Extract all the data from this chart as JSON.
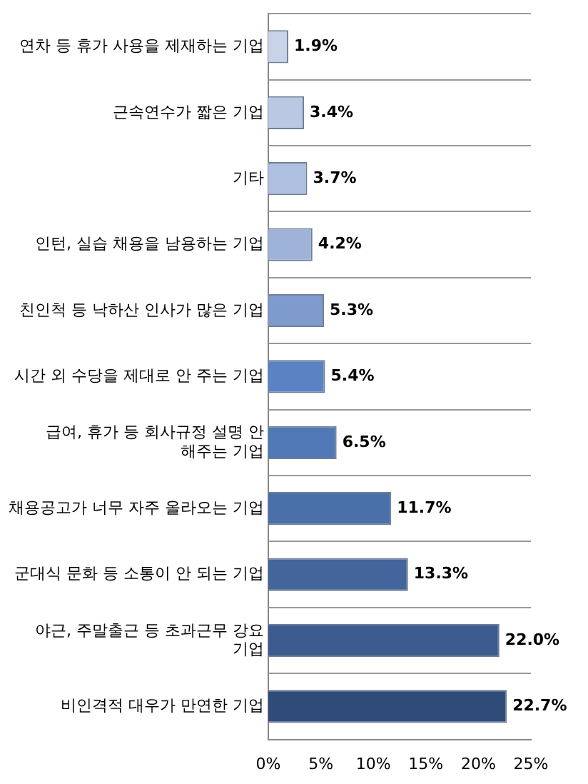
{
  "chart_data": {
    "type": "bar",
    "orientation": "horizontal",
    "categories": [
      "연차 등 휴가 사용을 제재하는 기업",
      "근속연수가 짧은 기업",
      "기타",
      "인턴, 실습 채용을 남용하는 기업",
      "친인척 등 낙하산 인사가 많은 기업",
      "시간 외 수당을 제대로 안 주는 기업",
      "급여, 휴가 등 회사규정 설명 안 해주는 기업",
      "채용공고가 너무 자주 올라오는 기업",
      "군대식 문화 등 소통이 안 되는 기업",
      "야근, 주말출근 등 초과근무 강요 기업",
      "비인격적 대우가 만연한 기업"
    ],
    "values": [
      1.9,
      3.4,
      3.7,
      4.2,
      5.3,
      5.4,
      6.5,
      11.7,
      13.3,
      22.0,
      22.7
    ],
    "value_labels": [
      "1.9%",
      "3.4%",
      "3.7%",
      "4.2%",
      "5.3%",
      "5.4%",
      "6.5%",
      "11.7%",
      "13.3%",
      "22.0%",
      "22.7%"
    ],
    "colors": [
      "#c9d3e8",
      "#bac8e3",
      "#aebfdf",
      "#9fb3d8",
      "#7f9bcd",
      "#5b82c2",
      "#4f78b5",
      "#4a70aa",
      "#43659c",
      "#3d5b8e",
      "#2f4b78"
    ],
    "xlim": [
      0,
      25
    ],
    "xticks": [
      {
        "value": 0,
        "label": "0%"
      },
      {
        "value": 5,
        "label": "5%"
      },
      {
        "value": 10,
        "label": "10%"
      },
      {
        "value": 15,
        "label": "15%"
      },
      {
        "value": 20,
        "label": "20%"
      },
      {
        "value": 25,
        "label": "25%"
      }
    ],
    "grid": "y",
    "legend": false
  }
}
